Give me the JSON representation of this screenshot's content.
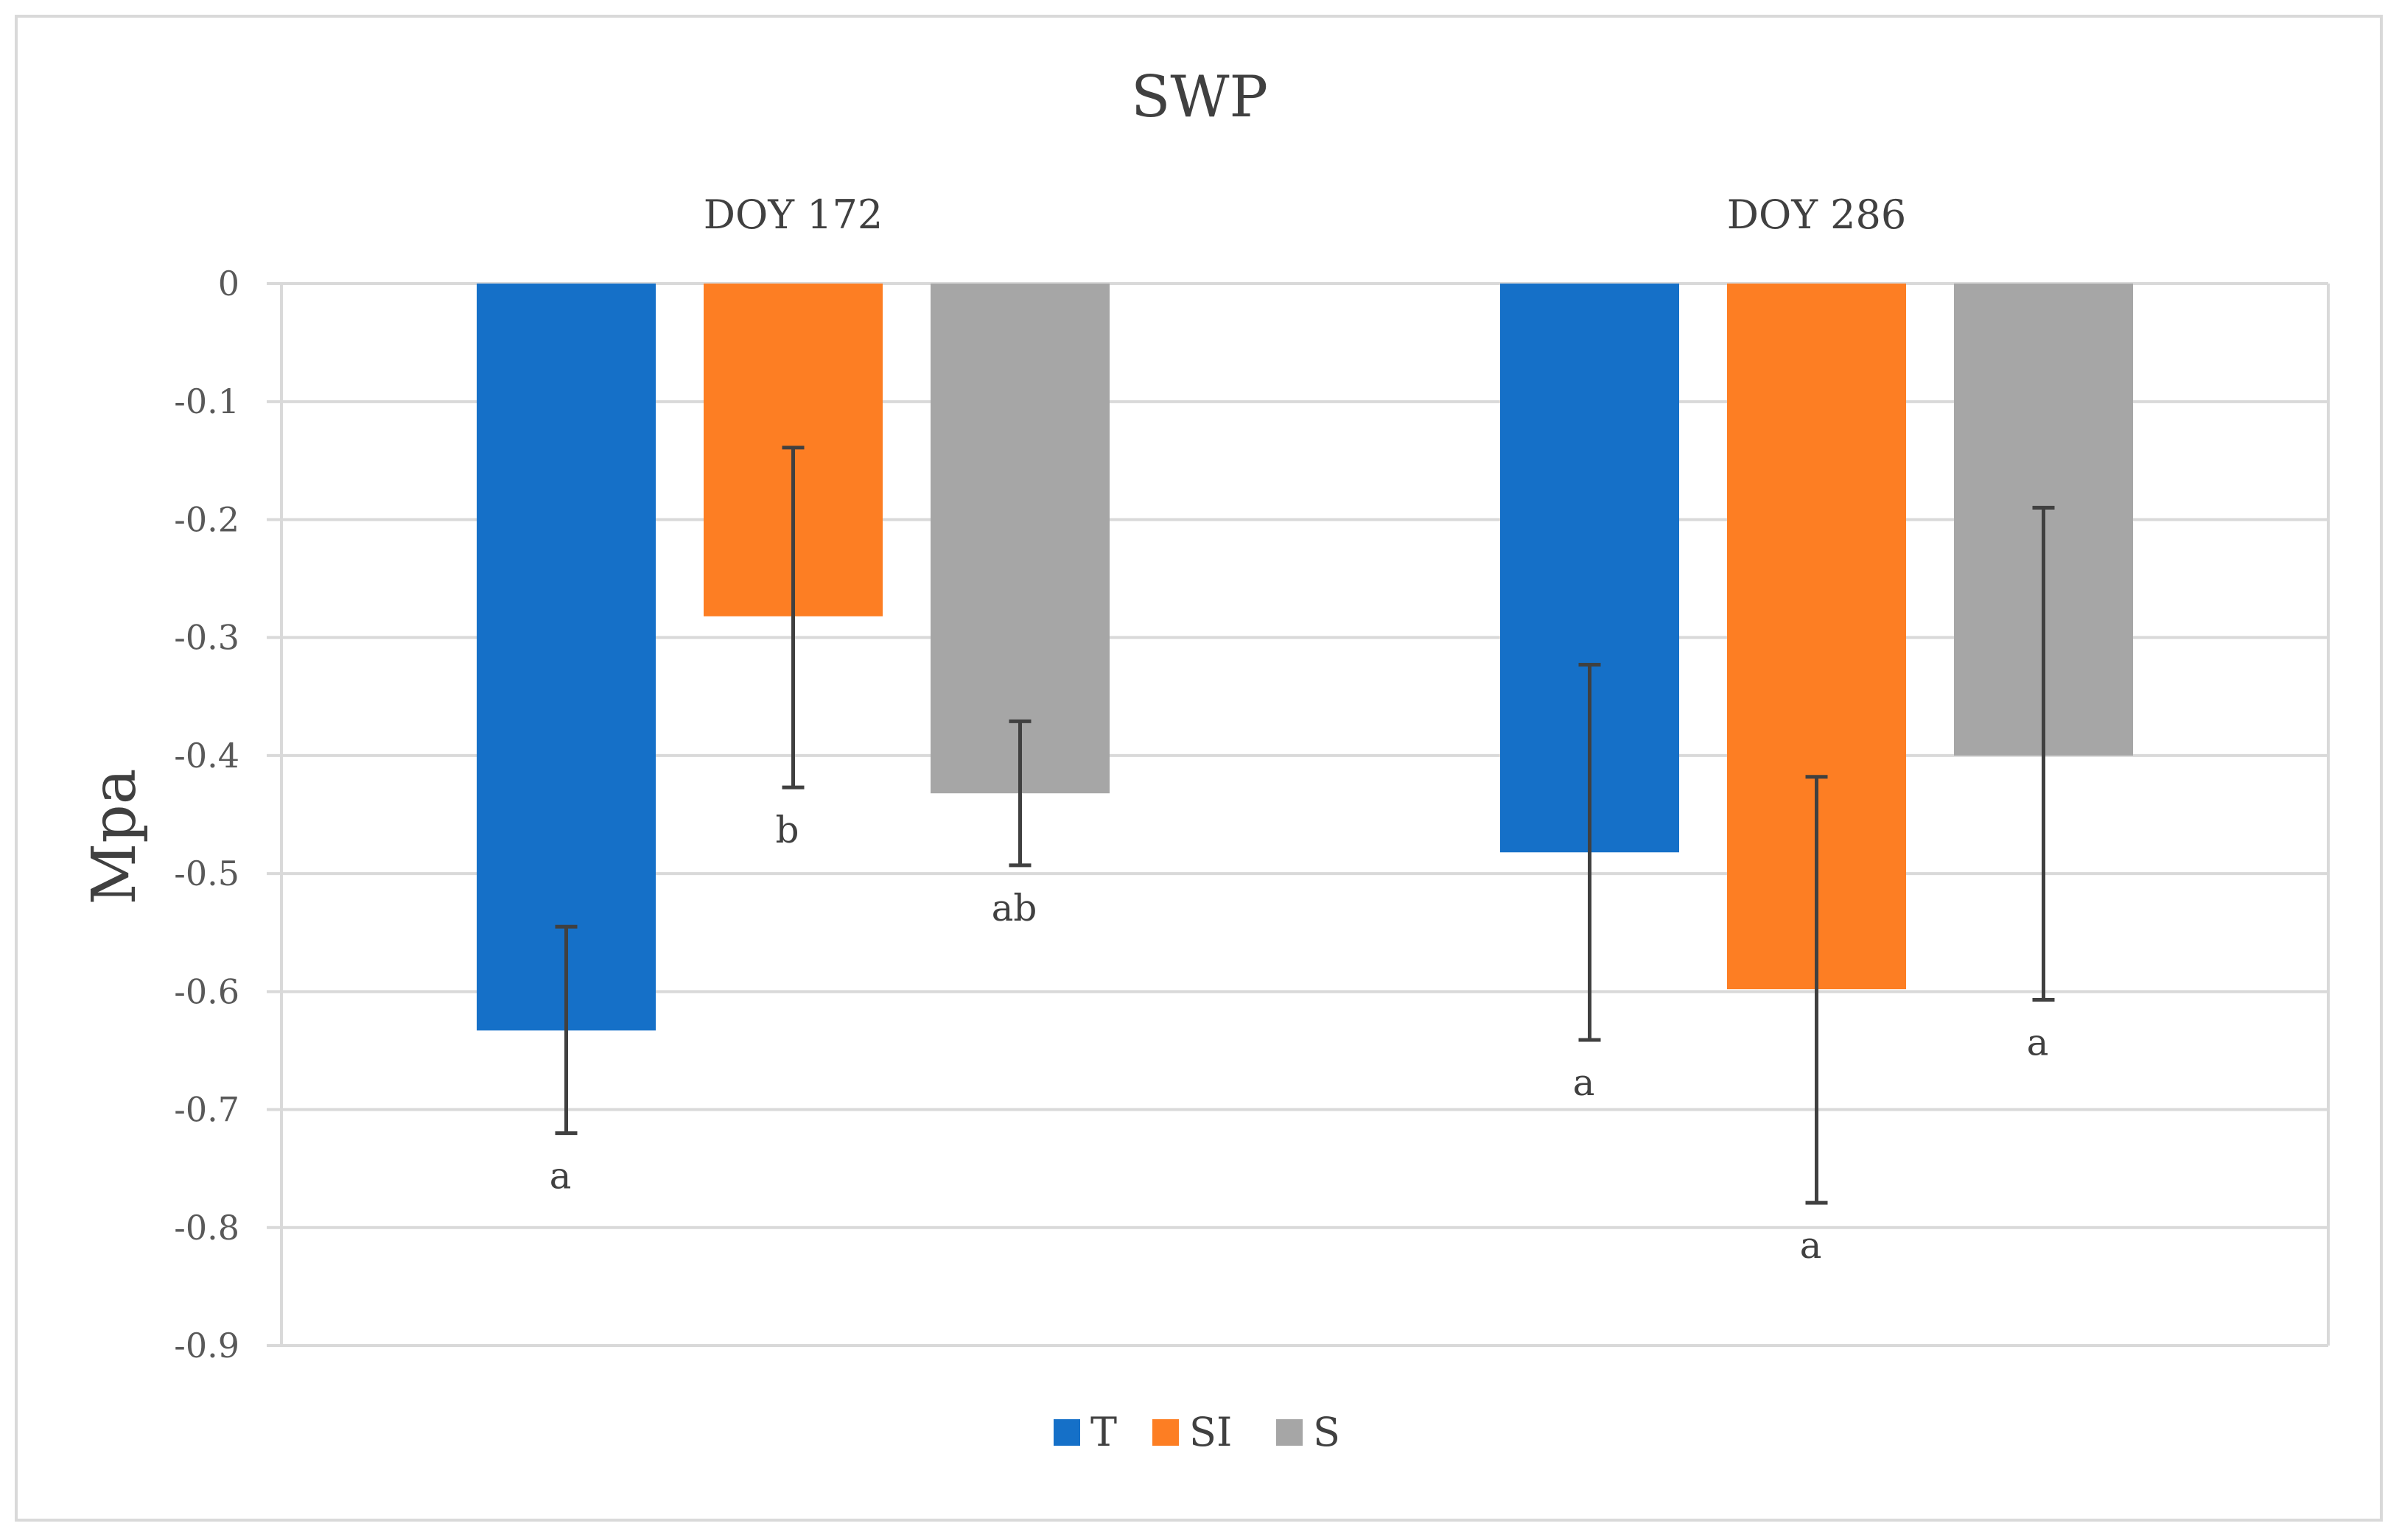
{
  "chart_data": {
    "type": "bar",
    "title": "SWP",
    "xlabel": "",
    "ylabel": "Mpa",
    "ylim": [
      -0.9,
      0
    ],
    "y_ticks": [
      "0",
      "-0.1",
      "-0.2",
      "-0.3",
      "-0.4",
      "-0.5",
      "-0.6",
      "-0.7",
      "-0.8",
      "-0.9"
    ],
    "grid": true,
    "legend_position": "bottom-center",
    "categories": [
      "DOY 172",
      "DOY 286"
    ],
    "series": [
      {
        "name": "T",
        "color": "#1570c8",
        "values": [
          -0.633,
          -0.482
        ],
        "error_low": [
          -0.72,
          -0.641
        ],
        "error_high": [
          -0.545,
          -0.323
        ],
        "significance": [
          "a",
          "a"
        ]
      },
      {
        "name": "SI",
        "color": "#fd7e23",
        "values": [
          -0.282,
          -0.598
        ],
        "error_low": [
          -0.427,
          -0.779
        ],
        "error_high": [
          -0.139,
          -0.418
        ],
        "significance": [
          "b",
          "a"
        ]
      },
      {
        "name": "S",
        "color": "#a6a6a6",
        "values": [
          -0.432,
          -0.4
        ],
        "error_low": [
          -0.493,
          -0.607
        ],
        "error_high": [
          -0.371,
          -0.19
        ],
        "significance": [
          "ab",
          "a"
        ]
      }
    ]
  }
}
